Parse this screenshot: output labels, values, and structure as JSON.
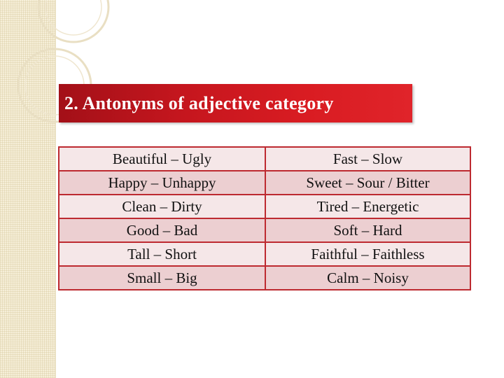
{
  "slide": {
    "title": "2. Antonyms of adjective category",
    "rows": [
      [
        "Beautiful – Ugly",
        "Fast – Slow"
      ],
      [
        "Happy – Unhappy",
        "Sweet – Sour / Bitter"
      ],
      [
        "Clean – Dirty",
        "Tired – Energetic"
      ],
      [
        "Good – Bad",
        "Soft – Hard"
      ],
      [
        "Tall – Short",
        "Faithful – Faithless"
      ],
      [
        "Small – Big",
        "Calm – Noisy"
      ]
    ]
  },
  "colors": {
    "title_bar": "#d91c22",
    "table_border": "#bd2a30",
    "row_light": "#f5e7e8",
    "row_dark": "#eccfd1",
    "side_strip": "#f6efd9"
  }
}
